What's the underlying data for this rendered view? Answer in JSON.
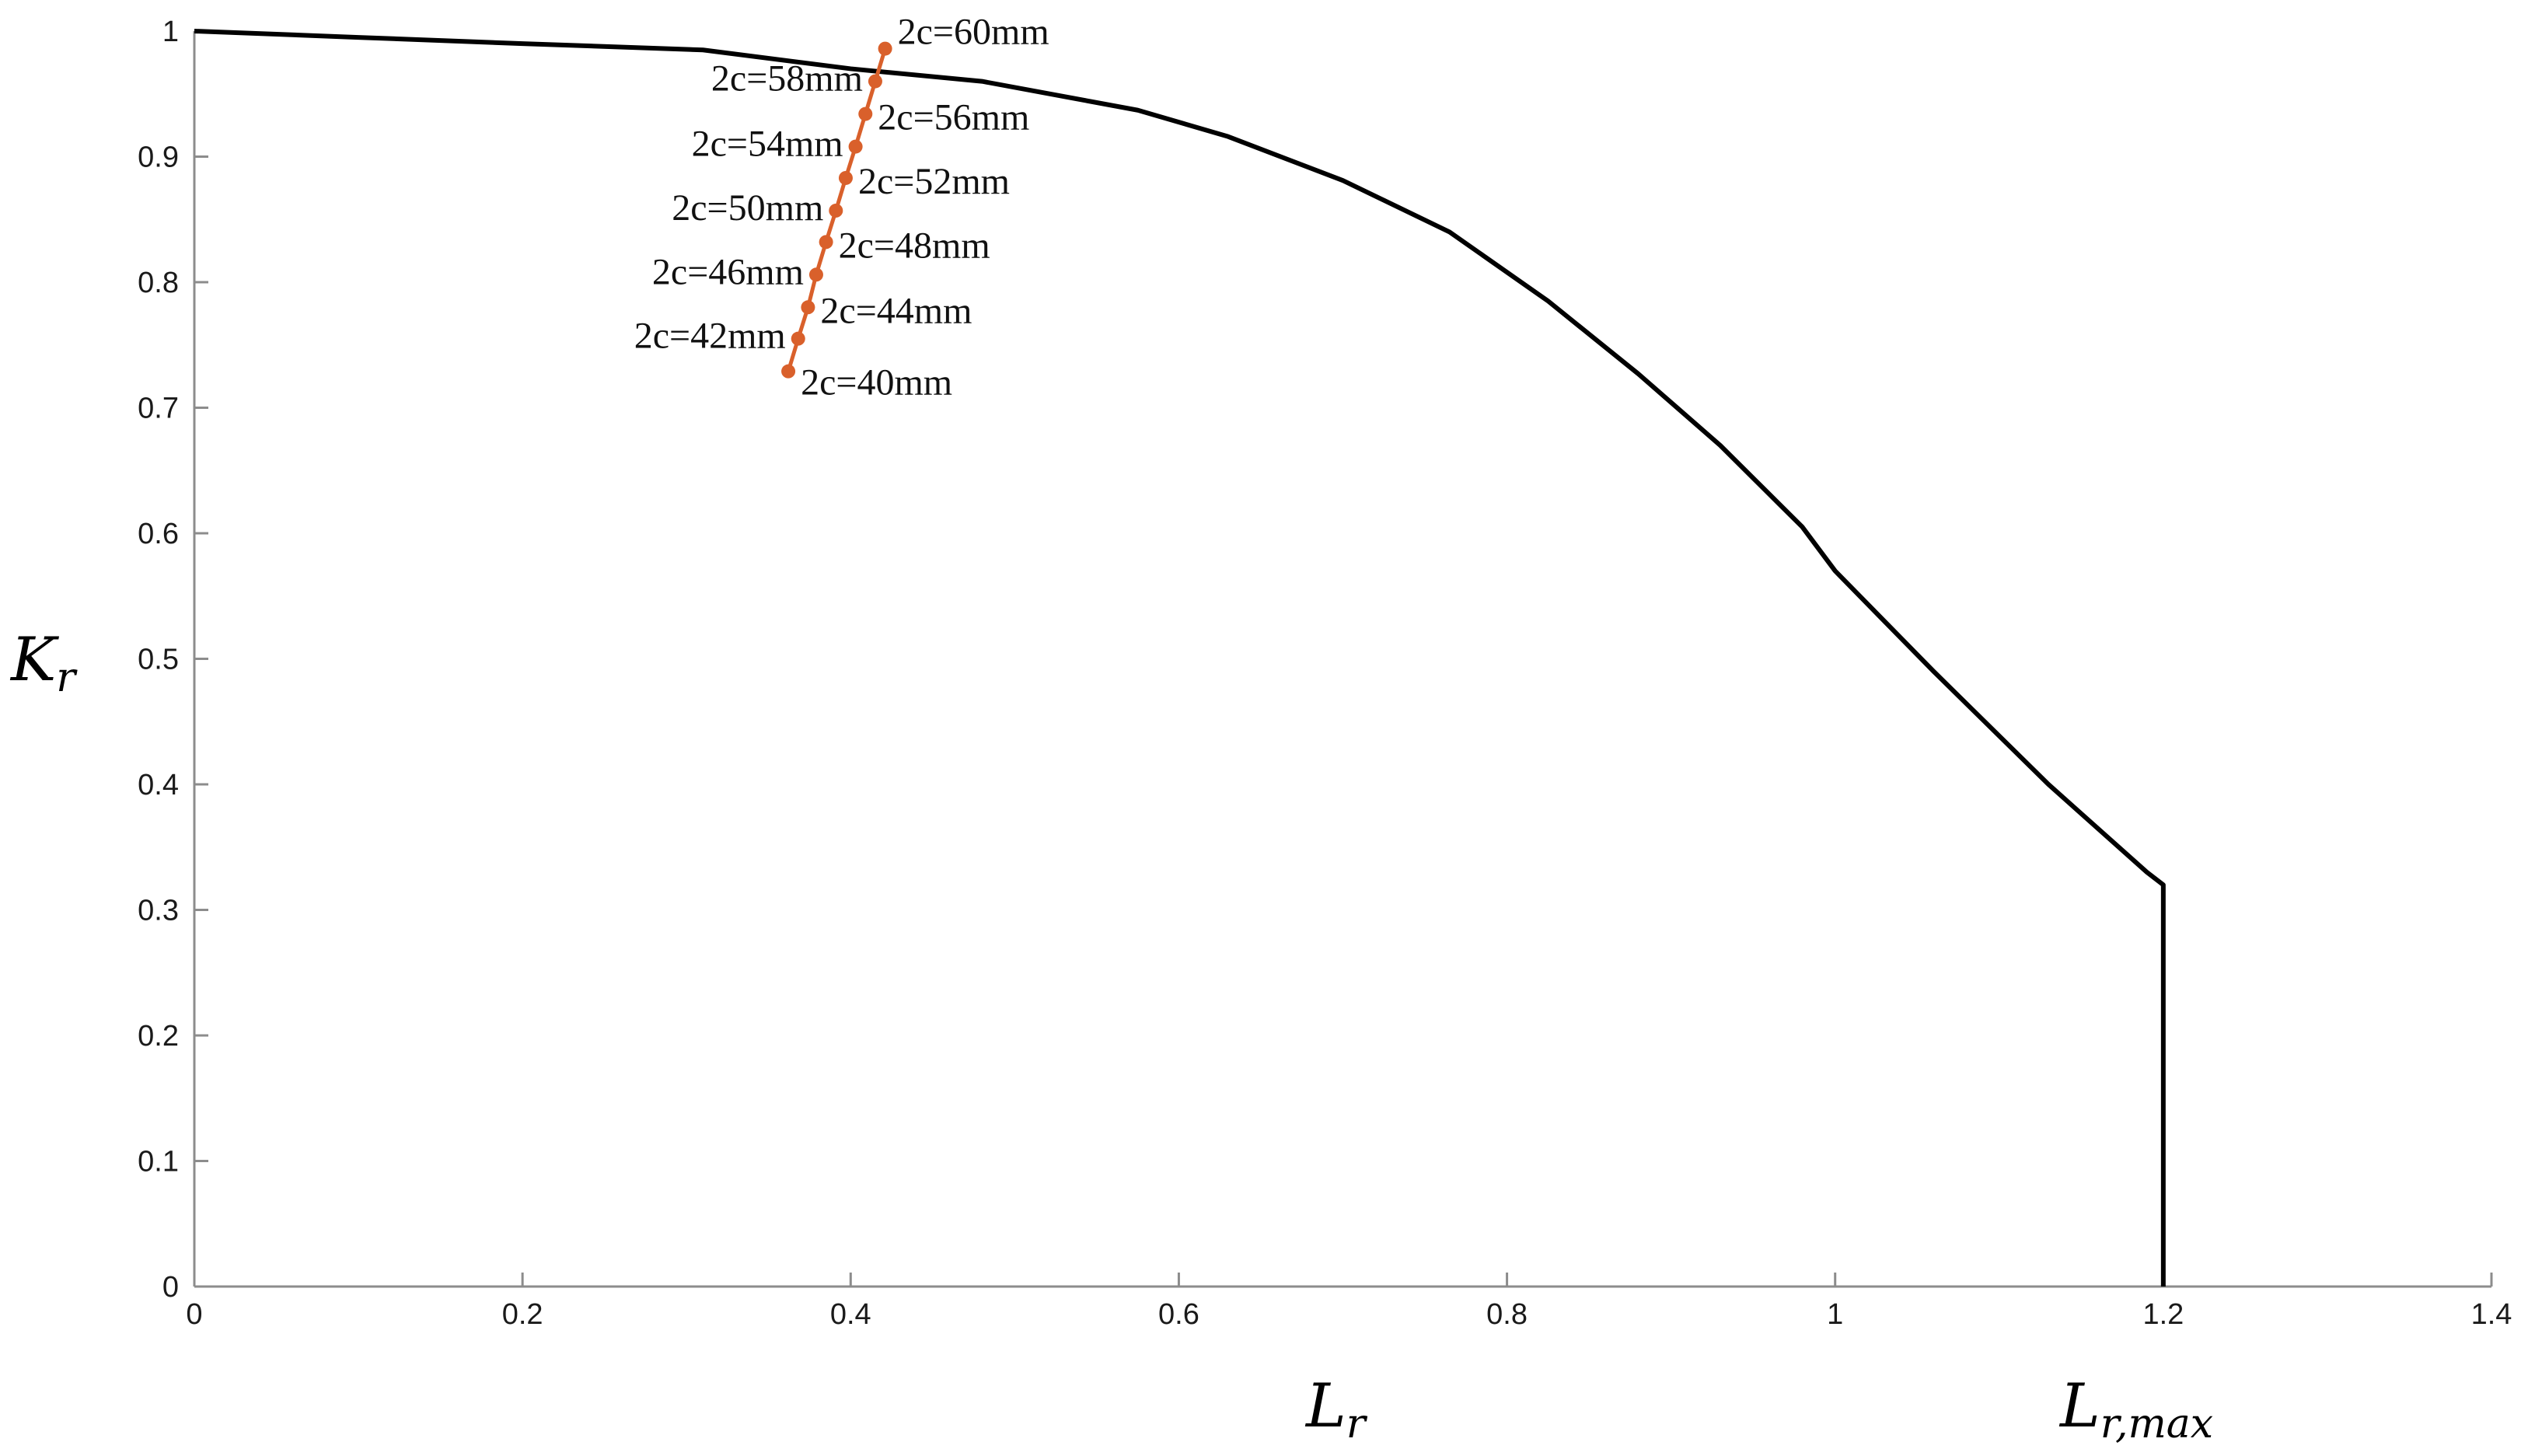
{
  "chart_data": {
    "type": "line",
    "xlabel": "L",
    "xlabel_sub": "r",
    "ylabel": "K",
    "ylabel_sub": "r",
    "extra_xlabel": "L",
    "extra_xlabel_sub": "r,max",
    "xlim": [
      0,
      1.4
    ],
    "ylim": [
      0,
      1
    ],
    "xticks": [
      "0",
      "0.2",
      "0.4",
      "0.6",
      "0.8",
      "1",
      "1.2",
      "1.4"
    ],
    "yticks": [
      "0",
      "0.1",
      "0.2",
      "0.3",
      "0.4",
      "0.5",
      "0.6",
      "0.7",
      "0.8",
      "0.9",
      "1"
    ],
    "grid": false,
    "colors": {
      "fad_curve": "#000000",
      "assessment": "#d9602b"
    },
    "fad_curve": {
      "x": [
        0,
        0.1,
        0.2,
        0.31,
        0.4,
        0.48,
        0.575,
        0.63,
        0.7,
        0.765,
        0.825,
        0.88,
        0.93,
        0.98,
        1.0,
        1.06,
        1.13,
        1.19,
        1.2,
        1.2
      ],
      "y": [
        1,
        0.995,
        0.99,
        0.985,
        0.97,
        0.96,
        0.937,
        0.916,
        0.881,
        0.84,
        0.785,
        0.727,
        0.67,
        0.605,
        0.57,
        0.49,
        0.4,
        0.33,
        0.32,
        0
      ]
    },
    "assessment_points": [
      {
        "label": "2c=40mm",
        "x": 0.362,
        "y": 0.729,
        "side": "right"
      },
      {
        "label": "2c=42mm",
        "x": 0.368,
        "y": 0.755,
        "side": "left"
      },
      {
        "label": "2c=44mm",
        "x": 0.374,
        "y": 0.78,
        "side": "right"
      },
      {
        "label": "2c=46mm",
        "x": 0.379,
        "y": 0.806,
        "side": "left"
      },
      {
        "label": "2c=48mm",
        "x": 0.385,
        "y": 0.832,
        "side": "right"
      },
      {
        "label": "2c=50mm",
        "x": 0.391,
        "y": 0.857,
        "side": "left"
      },
      {
        "label": "2c=52mm",
        "x": 0.397,
        "y": 0.883,
        "side": "right"
      },
      {
        "label": "2c=54mm",
        "x": 0.403,
        "y": 0.908,
        "side": "left"
      },
      {
        "label": "2c=56mm",
        "x": 0.409,
        "y": 0.934,
        "side": "right"
      },
      {
        "label": "2c=58mm",
        "x": 0.415,
        "y": 0.96,
        "side": "left"
      },
      {
        "label": "2c=60mm",
        "x": 0.421,
        "y": 0.986,
        "side": "right"
      }
    ]
  }
}
